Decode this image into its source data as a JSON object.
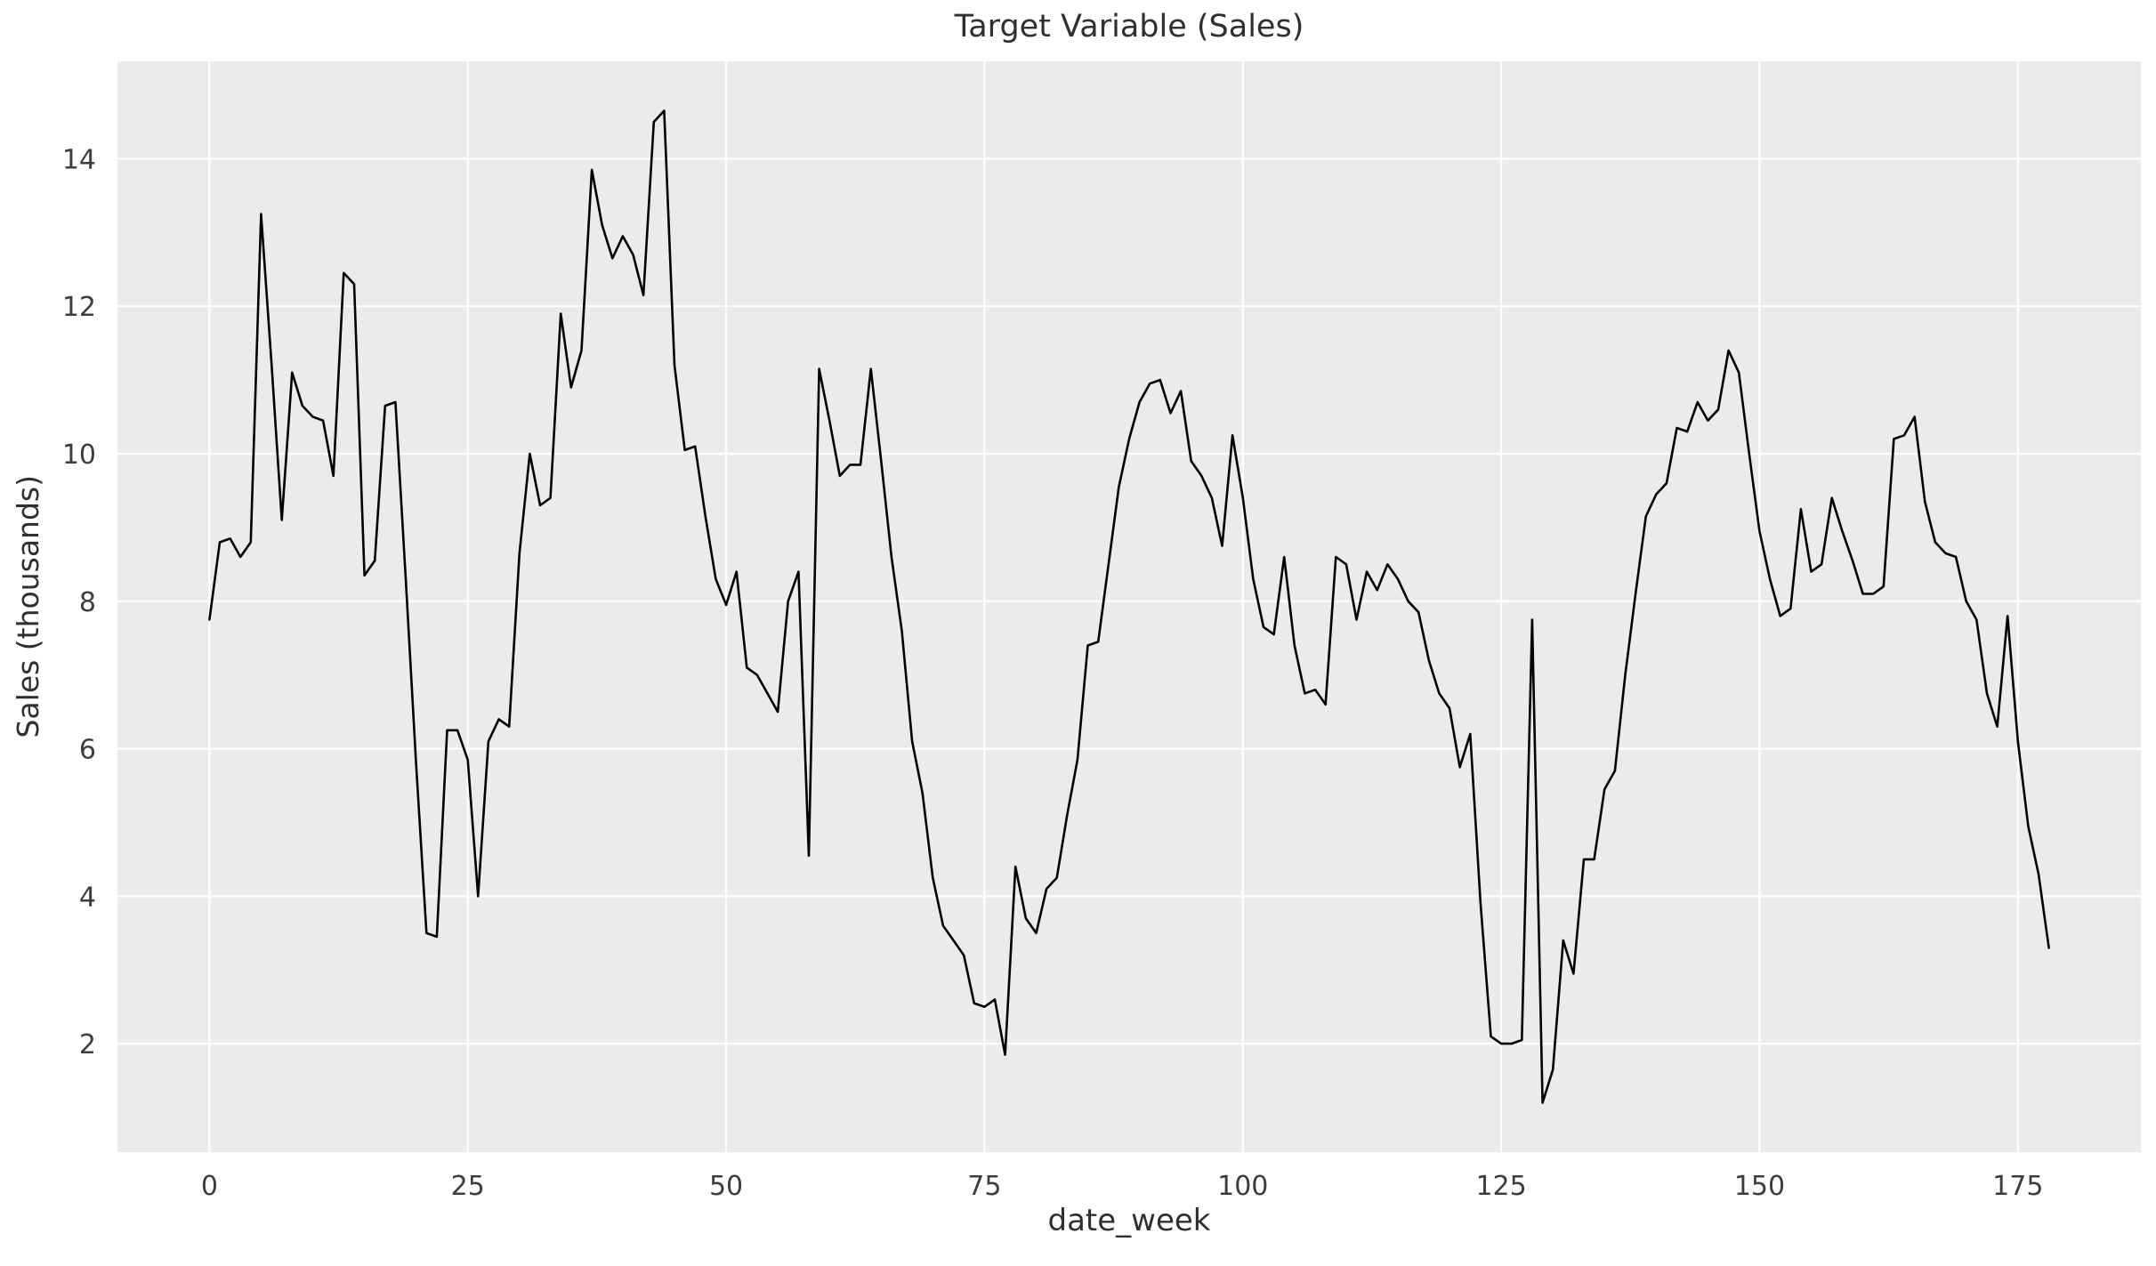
{
  "figure": {
    "kind": "matplotlib-line-figure",
    "background": "#ffffff"
  },
  "chart_data": {
    "type": "line",
    "title": "Target Variable (Sales)",
    "xlabel": "date_week",
    "ylabel": "Sales (thousands)",
    "legend_position": "none",
    "grid": true,
    "x_start": 0,
    "x_step": 1,
    "x_end": 178,
    "values": [
      7.75,
      8.8,
      8.85,
      8.6,
      8.8,
      13.25,
      11.25,
      9.1,
      11.1,
      10.65,
      10.5,
      10.45,
      9.7,
      12.45,
      12.3,
      8.35,
      8.55,
      10.65,
      10.7,
      8.3,
      5.8,
      3.5,
      3.45,
      6.25,
      6.25,
      5.85,
      4.0,
      6.1,
      6.4,
      6.3,
      8.65,
      10.0,
      9.3,
      9.4,
      11.9,
      10.9,
      11.4,
      13.85,
      13.1,
      12.65,
      12.95,
      12.7,
      12.15,
      14.5,
      14.65,
      11.2,
      10.05,
      10.1,
      9.15,
      8.3,
      7.95,
      8.4,
      7.1,
      7.0,
      6.75,
      6.5,
      8.0,
      8.4,
      4.55,
      11.15,
      10.45,
      9.7,
      9.85,
      9.85,
      11.15,
      9.9,
      8.6,
      7.6,
      6.1,
      5.4,
      4.25,
      3.6,
      3.4,
      3.2,
      2.55,
      2.5,
      2.6,
      1.85,
      4.4,
      3.7,
      3.5,
      4.1,
      4.25,
      5.1,
      5.85,
      7.4,
      7.45,
      8.5,
      9.55,
      10.2,
      10.7,
      10.95,
      11.0,
      10.55,
      10.85,
      9.9,
      9.7,
      9.4,
      8.75,
      10.25,
      9.4,
      8.3,
      7.65,
      7.55,
      8.6,
      7.4,
      6.75,
      6.8,
      6.6,
      8.6,
      8.5,
      7.75,
      8.4,
      8.15,
      8.5,
      8.3,
      8.0,
      7.85,
      7.2,
      6.75,
      6.55,
      5.75,
      6.2,
      3.9,
      2.1,
      2.0,
      2.0,
      2.05,
      7.75,
      1.2,
      1.65,
      3.4,
      2.95,
      4.5,
      4.5,
      5.45,
      5.7,
      7.0,
      8.1,
      9.15,
      9.45,
      9.6,
      10.35,
      10.3,
      10.7,
      10.45,
      10.6,
      11.4,
      11.1,
      10.0,
      8.95,
      8.3,
      7.8,
      7.9,
      9.25,
      8.4,
      8.5,
      9.4,
      8.95,
      8.55,
      8.1,
      8.1,
      8.2,
      10.2,
      10.25,
      10.5,
      9.35,
      8.8,
      8.65,
      8.6,
      8.0,
      7.75,
      6.75,
      6.3,
      7.8,
      6.1,
      4.95,
      4.3,
      3.3
    ],
    "xticks": [
      0,
      25,
      50,
      75,
      100,
      125,
      150,
      175
    ],
    "yticks": [
      2,
      4,
      6,
      8,
      10,
      12,
      14
    ],
    "xlim": [
      -8.9,
      186.9
    ],
    "ylim": [
      0.53,
      15.32
    ],
    "line_color": "#000000",
    "line_width": 2.6,
    "plot_bg": "#ebebeb",
    "grid_color": "#ffffff",
    "tick_color": "#3d3d3d"
  }
}
